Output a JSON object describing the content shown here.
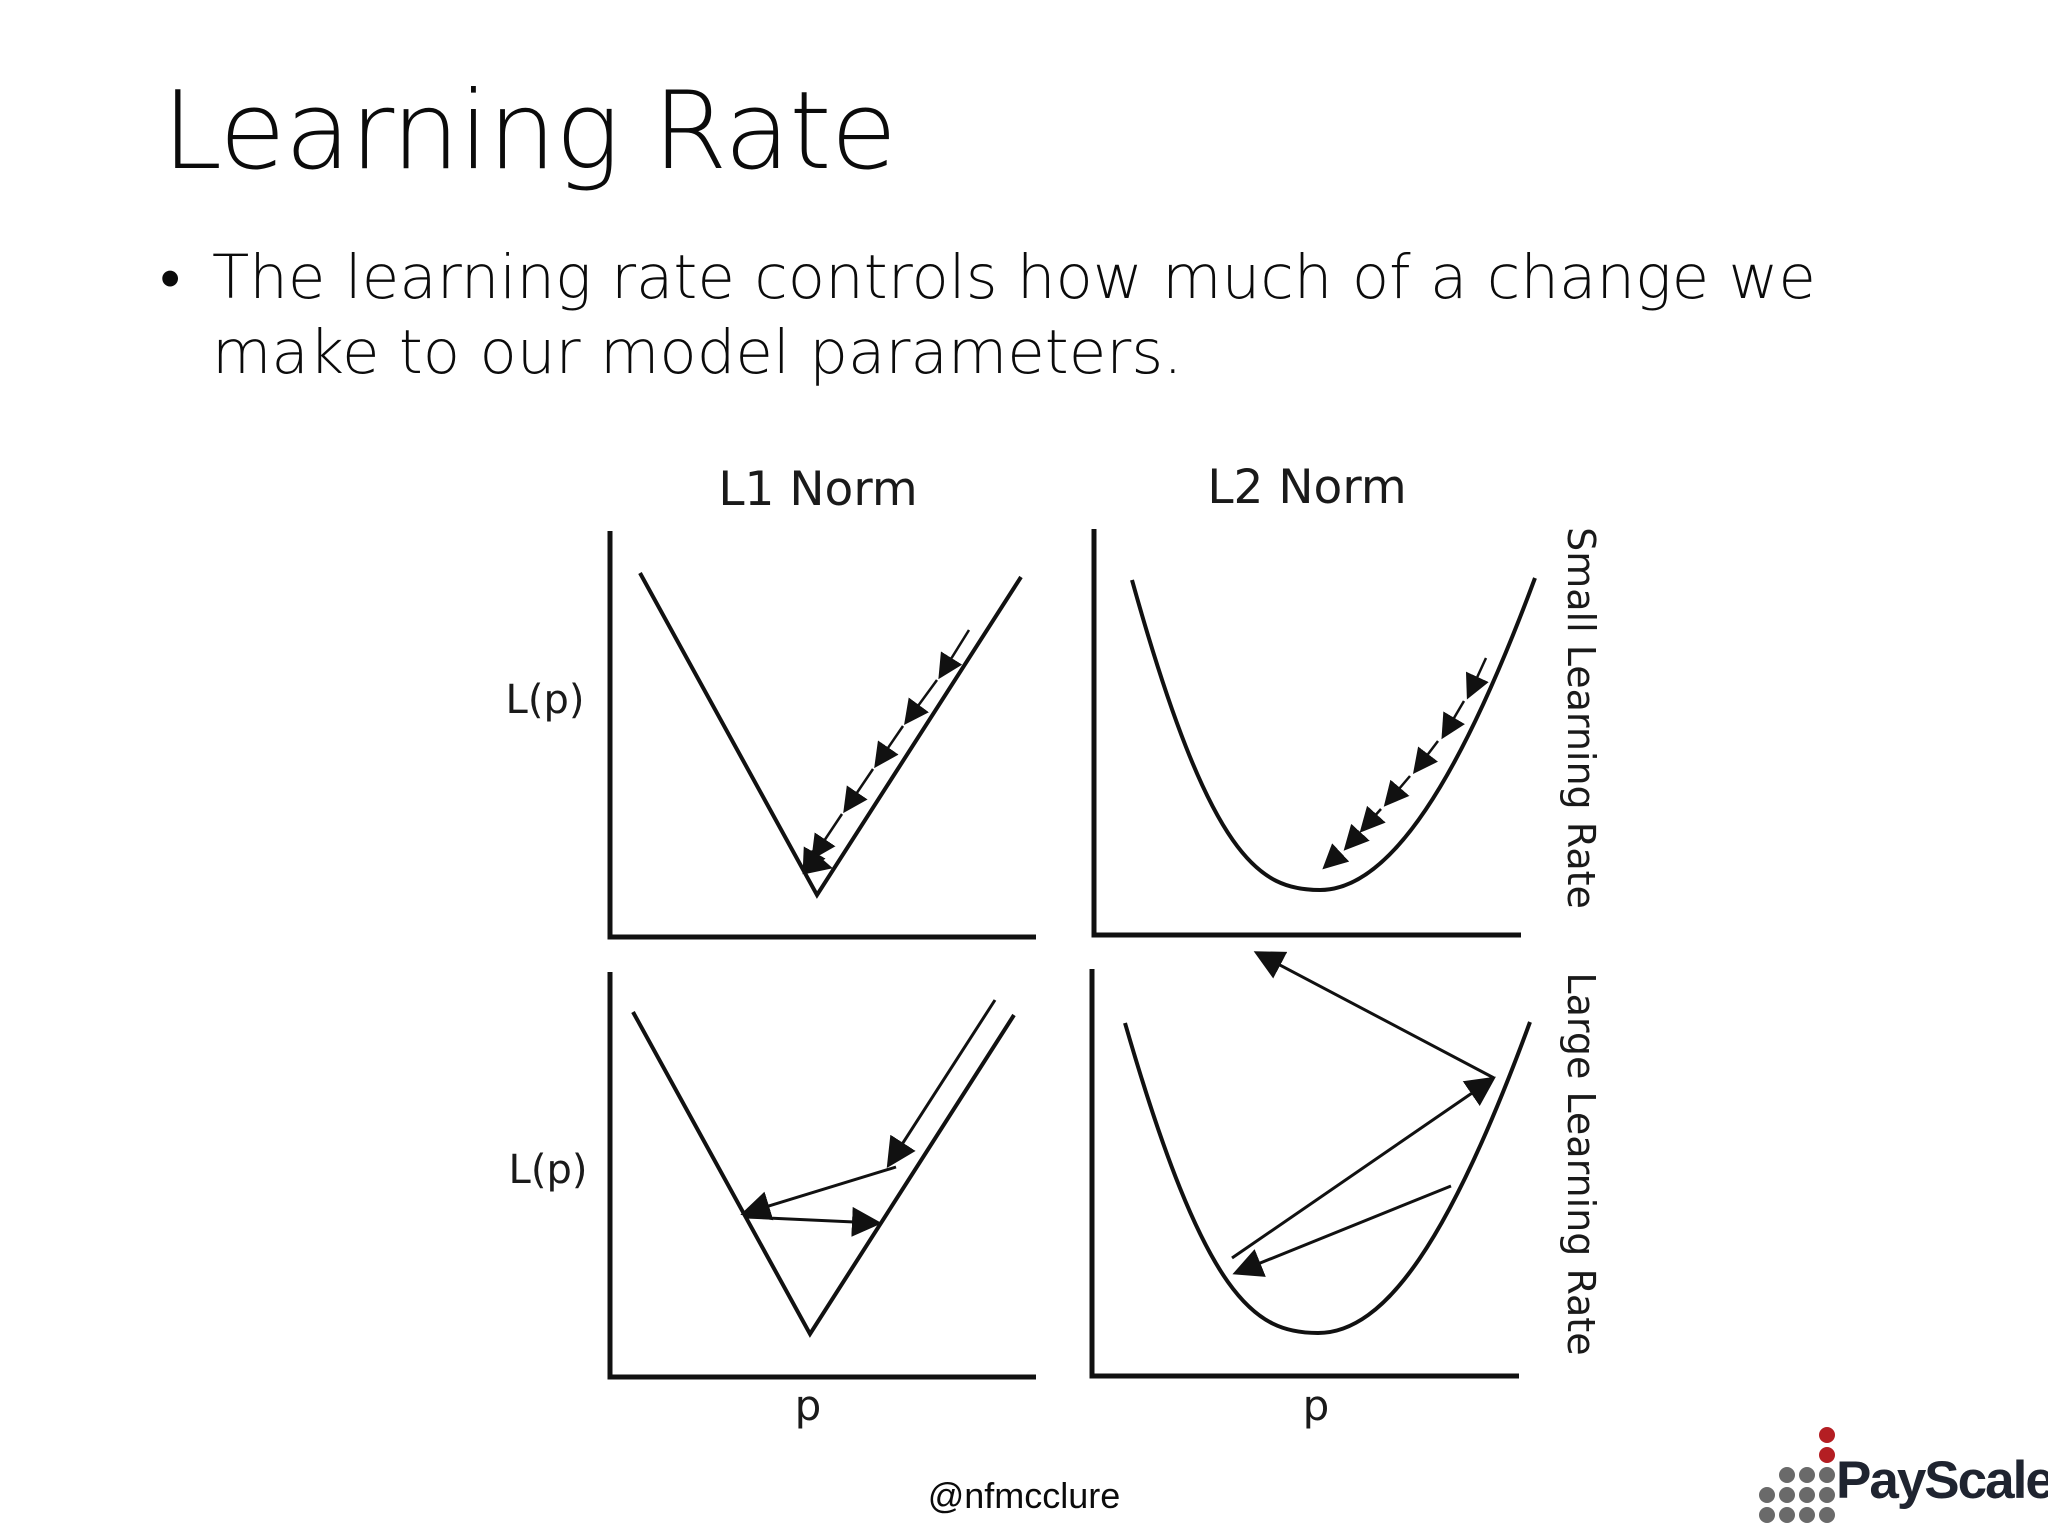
{
  "slide": {
    "title": "Learning Rate",
    "bullet": "The learning rate controls how much of a change we make to our model parameters."
  },
  "diagram": {
    "columns": [
      "L1 Norm",
      "L2 Norm"
    ],
    "rows": [
      "Small Learning Rate",
      "Large Learning Rate"
    ],
    "y_label": "L(p)",
    "x_label": "p"
  },
  "footer": {
    "handle": "@nfmcclure"
  },
  "brand": {
    "name": "PayScale",
    "accent_color": "#b41e23",
    "dot_color": "#6a6a6a"
  }
}
